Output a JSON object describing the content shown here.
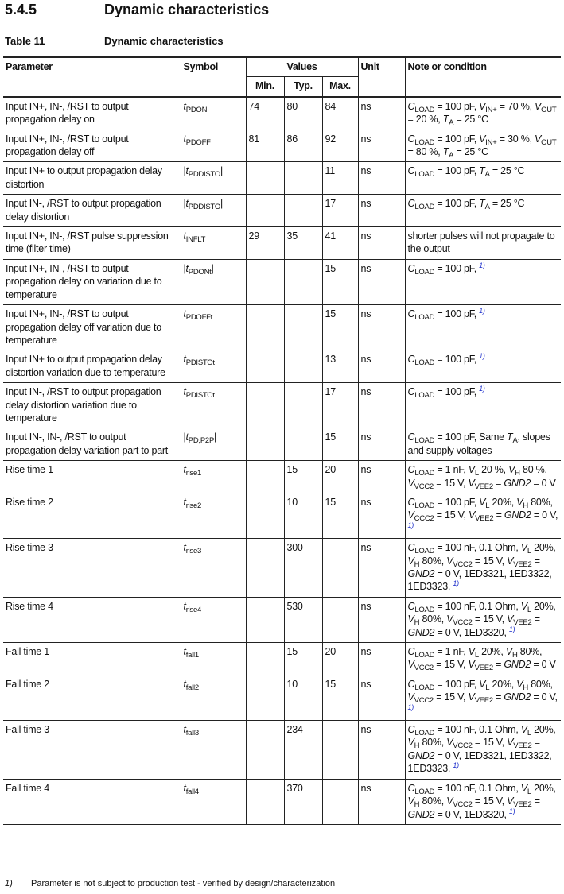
{
  "section": {
    "number": "5.4.5",
    "title": "Dynamic characteristics"
  },
  "table_caption": {
    "number": "Table 11",
    "title": "Dynamic characteristics"
  },
  "headers": {
    "parameter": "Parameter",
    "symbol": "Symbol",
    "values": "Values",
    "min": "Min.",
    "typ": "Typ.",
    "max": "Max.",
    "unit": "Unit",
    "note": "Note or condition"
  },
  "rows": [
    {
      "parameter": "Input IN+, IN-, /RST to output propagation delay on",
      "symbol": [
        [
          "t",
          "i"
        ],
        [
          "PDON",
          "s"
        ]
      ],
      "min": "74",
      "typ": "80",
      "max": "84",
      "unit": "ns",
      "note": [
        [
          "C",
          "i"
        ],
        [
          "LOAD",
          "s"
        ],
        [
          " = 100 pF, "
        ],
        [
          "V",
          "i"
        ],
        [
          "IN+",
          "s"
        ],
        [
          " = 70 %, "
        ],
        [
          "V",
          "i"
        ],
        [
          "OUT",
          "s"
        ],
        [
          " = 20 %, "
        ],
        [
          "T",
          "i"
        ],
        [
          "A",
          "s"
        ],
        [
          " = 25 °C"
        ]
      ]
    },
    {
      "parameter": "Input IN+, IN-, /RST to output propagation delay off",
      "symbol": [
        [
          "t",
          "i"
        ],
        [
          "PDOFF",
          "s"
        ]
      ],
      "min": "81",
      "typ": "86",
      "max": "92",
      "unit": "ns",
      "note": [
        [
          "C",
          "i"
        ],
        [
          "LOAD",
          "s"
        ],
        [
          " = 100 pF, "
        ],
        [
          "V",
          "i"
        ],
        [
          "IN+",
          "s"
        ],
        [
          " = 30 %, "
        ],
        [
          "V",
          "i"
        ],
        [
          "OUT",
          "s"
        ],
        [
          " = 80 %, "
        ],
        [
          "T",
          "i"
        ],
        [
          "A",
          "s"
        ],
        [
          " = 25 °C"
        ]
      ]
    },
    {
      "parameter": "Input IN+ to output propagation delay distortion",
      "symbol": [
        [
          "|"
        ],
        [
          "t",
          "i"
        ],
        [
          "PDDISTO",
          "s"
        ],
        [
          "|"
        ]
      ],
      "min": "",
      "typ": "",
      "max": "11",
      "unit": "ns",
      "note": [
        [
          "C",
          "i"
        ],
        [
          "LOAD",
          "s"
        ],
        [
          " = 100 pF, "
        ],
        [
          "T",
          "i"
        ],
        [
          "A",
          "s"
        ],
        [
          " = 25 °C"
        ]
      ]
    },
    {
      "parameter": "Input IN-, /RST to output propagation delay distortion",
      "symbol": [
        [
          "|"
        ],
        [
          "t",
          "i"
        ],
        [
          "PDDISTO",
          "s"
        ],
        [
          "|"
        ]
      ],
      "min": "",
      "typ": "",
      "max": "17",
      "unit": "ns",
      "note": [
        [
          "C",
          "i"
        ],
        [
          "LOAD",
          "s"
        ],
        [
          " = 100 pF, "
        ],
        [
          "T",
          "i"
        ],
        [
          "A",
          "s"
        ],
        [
          " = 25 °C"
        ]
      ]
    },
    {
      "parameter": "Input IN+, IN-, /RST pulse suppression time (filter time)",
      "symbol": [
        [
          "t",
          "i"
        ],
        [
          "INFLT",
          "s"
        ]
      ],
      "min": "29",
      "typ": "35",
      "max": "41",
      "unit": "ns",
      "note": [
        [
          "shorter pulses will not propagate to the output"
        ]
      ]
    },
    {
      "parameter": "Input IN+, IN-, /RST to output propagation delay on variation due to temperature",
      "symbol": [
        [
          "|"
        ],
        [
          "t",
          "i"
        ],
        [
          "PDONt",
          "s"
        ],
        [
          "|"
        ]
      ],
      "min": "",
      "typ": "",
      "max": "15",
      "unit": "ns",
      "note": [
        [
          "C",
          "i"
        ],
        [
          "LOAD",
          "s"
        ],
        [
          " = 100 pF, "
        ],
        [
          "1)",
          "f"
        ]
      ]
    },
    {
      "parameter": "Input IN+, IN-, /RST to output propagation delay off variation due to temperature",
      "symbol": [
        [
          "t",
          "i"
        ],
        [
          "PDOFFt",
          "s"
        ]
      ],
      "min": "",
      "typ": "",
      "max": "15",
      "unit": "ns",
      "note": [
        [
          "C",
          "i"
        ],
        [
          "LOAD",
          "s"
        ],
        [
          " = 100 pF, "
        ],
        [
          "1)",
          "f"
        ]
      ]
    },
    {
      "parameter": "Input IN+ to output propagation delay distortion variation due to temperature",
      "symbol": [
        [
          "t",
          "i"
        ],
        [
          "PDISTOt",
          "s"
        ]
      ],
      "min": "",
      "typ": "",
      "max": "13",
      "unit": "ns",
      "note": [
        [
          "C",
          "i"
        ],
        [
          "LOAD",
          "s"
        ],
        [
          " = 100 pF, "
        ],
        [
          "1)",
          "f"
        ]
      ]
    },
    {
      "parameter": "Input IN-, /RST to output propagation delay distortion variation due to temperature",
      "symbol": [
        [
          "t",
          "i"
        ],
        [
          "PDISTOt",
          "s"
        ]
      ],
      "min": "",
      "typ": "",
      "max": "17",
      "unit": "ns",
      "note": [
        [
          "C",
          "i"
        ],
        [
          "LOAD",
          "s"
        ],
        [
          " = 100 pF, "
        ],
        [
          "1)",
          "f"
        ]
      ]
    },
    {
      "parameter": "Input IN-, IN-, /RST to output propagation delay variation part to part",
      "symbol": [
        [
          "|"
        ],
        [
          "t",
          "i"
        ],
        [
          "PD,P2P",
          "s"
        ],
        [
          "|"
        ]
      ],
      "min": "",
      "typ": "",
      "max": "15",
      "unit": "ns",
      "note": [
        [
          "C",
          "i"
        ],
        [
          "LOAD",
          "s"
        ],
        [
          " = 100 pF, Same "
        ],
        [
          "T",
          "i"
        ],
        [
          "A",
          "s"
        ],
        [
          ", slopes and supply voltages"
        ]
      ]
    },
    {
      "parameter": "Rise time 1",
      "symbol": [
        [
          "t",
          "i"
        ],
        [
          "rise1",
          "s"
        ]
      ],
      "min": "",
      "typ": "15",
      "max": "20",
      "unit": "ns",
      "note": [
        [
          "C",
          "i"
        ],
        [
          "LOAD",
          "s"
        ],
        [
          " = 1 nF, "
        ],
        [
          "V",
          "i"
        ],
        [
          "L",
          "s"
        ],
        [
          " 20 %, "
        ],
        [
          "V",
          "i"
        ],
        [
          "H",
          "s"
        ],
        [
          " 80 %, "
        ],
        [
          "V",
          "i"
        ],
        [
          "VCC2",
          "s"
        ],
        [
          " = 15 V, "
        ],
        [
          "V",
          "i"
        ],
        [
          "VEE2",
          "s"
        ],
        [
          " = "
        ],
        [
          "GND2",
          "i"
        ],
        [
          " = 0 V"
        ]
      ]
    },
    {
      "parameter": "Rise time 2",
      "symbol": [
        [
          "t",
          "i"
        ],
        [
          "rise2",
          "s"
        ]
      ],
      "min": "",
      "typ": "10",
      "max": "15",
      "unit": "ns",
      "note": [
        [
          "C",
          "i"
        ],
        [
          "LOAD",
          "s"
        ],
        [
          " = 100 pF, "
        ],
        [
          "V",
          "i"
        ],
        [
          "L",
          "s"
        ],
        [
          " 20%, "
        ],
        [
          "V",
          "i"
        ],
        [
          "H",
          "s"
        ],
        [
          " 80%, "
        ],
        [
          "V",
          "i"
        ],
        [
          "CCC2",
          "s"
        ],
        [
          " = 15 V, "
        ],
        [
          "V",
          "i"
        ],
        [
          "VEE2",
          "s"
        ],
        [
          " = "
        ],
        [
          "GND2",
          "i"
        ],
        [
          " = 0 V, "
        ],
        [
          "1)",
          "f"
        ]
      ]
    },
    {
      "parameter": "Rise time 3",
      "symbol": [
        [
          "t",
          "i"
        ],
        [
          "rise3",
          "s"
        ]
      ],
      "min": "",
      "typ": "300",
      "max": "",
      "unit": "ns",
      "note": [
        [
          "C",
          "i"
        ],
        [
          "LOAD",
          "s"
        ],
        [
          " = 100 nF, 0.1 Ohm, "
        ],
        [
          "V",
          "i"
        ],
        [
          "L",
          "s"
        ],
        [
          " 20%, "
        ],
        [
          "V",
          "i"
        ],
        [
          "H",
          "s"
        ],
        [
          " 80%, "
        ],
        [
          "V",
          "i"
        ],
        [
          "VCC2",
          "s"
        ],
        [
          " = 15 V, "
        ],
        [
          "V",
          "i"
        ],
        [
          "VEE2",
          "s"
        ],
        [
          " = "
        ],
        [
          "GND2",
          "i"
        ],
        [
          " = 0 V, 1ED3321, 1ED3322, 1ED3323, "
        ],
        [
          "1)",
          "f"
        ]
      ]
    },
    {
      "parameter": "Rise time 4",
      "symbol": [
        [
          "t",
          "i"
        ],
        [
          "rise4",
          "s"
        ]
      ],
      "min": "",
      "typ": "530",
      "max": "",
      "unit": "ns",
      "note": [
        [
          "C",
          "i"
        ],
        [
          "LOAD",
          "s"
        ],
        [
          " = 100 nF, 0.1 Ohm, "
        ],
        [
          "V",
          "i"
        ],
        [
          "L",
          "s"
        ],
        [
          " 20%, "
        ],
        [
          "V",
          "i"
        ],
        [
          "H",
          "s"
        ],
        [
          " 80%, "
        ],
        [
          "V",
          "i"
        ],
        [
          "VCC2",
          "s"
        ],
        [
          " = 15 V, "
        ],
        [
          "V",
          "i"
        ],
        [
          "VEE2",
          "s"
        ],
        [
          " = "
        ],
        [
          "GND2",
          "i"
        ],
        [
          " = 0 V, 1ED3320, "
        ],
        [
          "1)",
          "f"
        ]
      ]
    },
    {
      "parameter": "Fall time 1",
      "symbol": [
        [
          "t",
          "i"
        ],
        [
          "fall1",
          "s"
        ]
      ],
      "min": "",
      "typ": "15",
      "max": "20",
      "unit": "ns",
      "note": [
        [
          "C",
          "i"
        ],
        [
          "LOAD",
          "s"
        ],
        [
          " = 1 nF, "
        ],
        [
          "V",
          "i"
        ],
        [
          "L",
          "s"
        ],
        [
          " 20%, "
        ],
        [
          "V",
          "i"
        ],
        [
          "H",
          "s"
        ],
        [
          " 80%, "
        ],
        [
          "V",
          "i"
        ],
        [
          "VCC2",
          "s"
        ],
        [
          " = 15 V, "
        ],
        [
          "V",
          "i"
        ],
        [
          "VEE2",
          "s"
        ],
        [
          " = "
        ],
        [
          "GND2",
          "i"
        ],
        [
          " = 0 V"
        ]
      ]
    },
    {
      "parameter": "Fall time 2",
      "symbol": [
        [
          "t",
          "i"
        ],
        [
          "fall2",
          "s"
        ]
      ],
      "min": "",
      "typ": "10",
      "max": "15",
      "unit": "ns",
      "note": [
        [
          "C",
          "i"
        ],
        [
          "LOAD",
          "s"
        ],
        [
          " = 100 pF, "
        ],
        [
          "V",
          "i"
        ],
        [
          "L",
          "s"
        ],
        [
          " 20%, "
        ],
        [
          "V",
          "i"
        ],
        [
          "H",
          "s"
        ],
        [
          " 80%, "
        ],
        [
          "V",
          "i"
        ],
        [
          "VCC2",
          "s"
        ],
        [
          " = 15 V, "
        ],
        [
          "V",
          "i"
        ],
        [
          "VEE2",
          "s"
        ],
        [
          " = "
        ],
        [
          "GND2",
          "i"
        ],
        [
          " = 0 V, "
        ],
        [
          "1)",
          "f"
        ]
      ]
    },
    {
      "parameter": "Fall time 3",
      "symbol": [
        [
          "t",
          "i"
        ],
        [
          "fall3",
          "s"
        ]
      ],
      "min": "",
      "typ": "234",
      "max": "",
      "unit": "ns",
      "note": [
        [
          "C",
          "i"
        ],
        [
          "LOAD",
          "s"
        ],
        [
          " = 100 nF, 0.1 Ohm, "
        ],
        [
          "V",
          "i"
        ],
        [
          "L",
          "s"
        ],
        [
          " 20%, "
        ],
        [
          "V",
          "i"
        ],
        [
          "H",
          "s"
        ],
        [
          " 80%, "
        ],
        [
          "V",
          "i"
        ],
        [
          "VCC2",
          "s"
        ],
        [
          " = 15 V, "
        ],
        [
          "V",
          "i"
        ],
        [
          "VEE2",
          "s"
        ],
        [
          " = "
        ],
        [
          "GND2",
          "i"
        ],
        [
          " = 0 V, 1ED3321, 1ED3322, 1ED3323, "
        ],
        [
          "1)",
          "f"
        ]
      ]
    },
    {
      "parameter": "Fall time 4",
      "symbol": [
        [
          "t",
          "i"
        ],
        [
          "fall4",
          "s"
        ]
      ],
      "min": "",
      "typ": "370",
      "max": "",
      "unit": "ns",
      "note": [
        [
          "C",
          "i"
        ],
        [
          "LOAD",
          "s"
        ],
        [
          " = 100 nF, 0.1 Ohm, "
        ],
        [
          "V",
          "i"
        ],
        [
          "L",
          "s"
        ],
        [
          " 20%, "
        ],
        [
          "V",
          "i"
        ],
        [
          "H",
          "s"
        ],
        [
          " 80%, "
        ],
        [
          "V",
          "i"
        ],
        [
          "VCC2",
          "s"
        ],
        [
          " = 15 V, "
        ],
        [
          "V",
          "i"
        ],
        [
          "VEE2",
          "s"
        ],
        [
          " = "
        ],
        [
          "GND2",
          "i"
        ],
        [
          " = 0 V, 1ED3320, "
        ],
        [
          "1)",
          "f"
        ]
      ]
    }
  ],
  "footnote": {
    "number": "1)",
    "text": "Parameter is not subject to production test - verified by design/characterization"
  },
  "colors": {
    "footnote_link": "#2233cc",
    "rule": "#222222"
  }
}
